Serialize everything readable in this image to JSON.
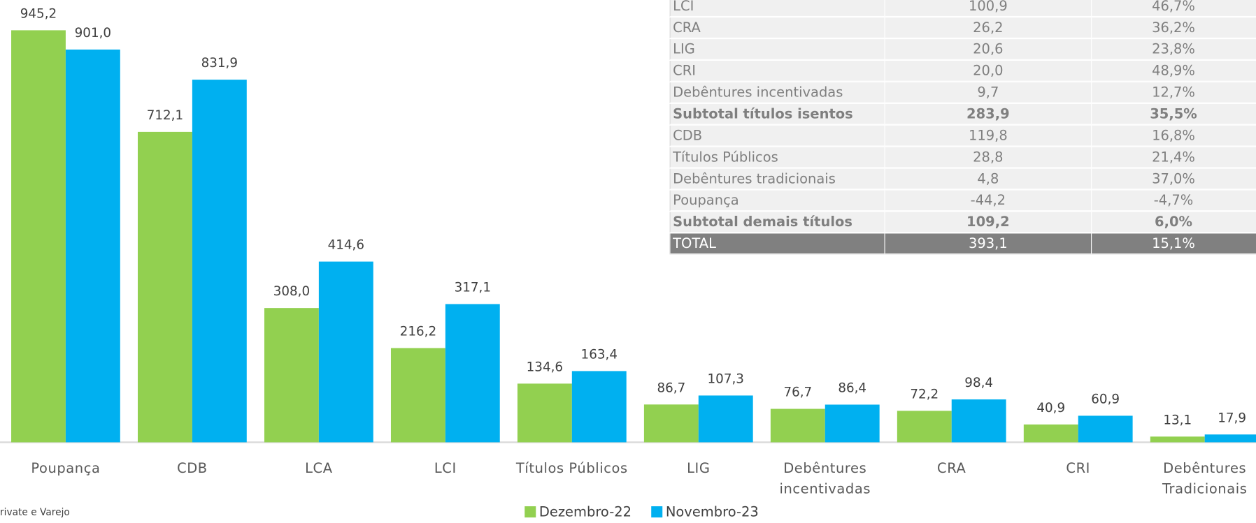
{
  "chart_data": {
    "type": "bar",
    "categories": [
      "Poupança",
      "CDB",
      "LCA",
      "LCI",
      "Títulos Públicos",
      "LIG",
      "Debêntures incentivadas",
      "CRA",
      "CRI",
      "Debêntures Tradicionais"
    ],
    "series": [
      {
        "name": "Dezembro-22",
        "color": "#92d050",
        "values": [
          945.2,
          712.1,
          308.0,
          216.2,
          134.6,
          86.7,
          76.7,
          72.2,
          40.9,
          13.1
        ],
        "value_labels": [
          "945,2",
          "712,1",
          "308,0",
          "216,2",
          "134,6",
          "86,7",
          "76,7",
          "72,2",
          "40,9",
          "13,1"
        ]
      },
      {
        "name": "Novembro-23",
        "color": "#00b0f0",
        "values": [
          901.0,
          831.9,
          414.6,
          317.1,
          163.4,
          107.3,
          86.4,
          98.4,
          60.9,
          17.9
        ],
        "value_labels": [
          "901,0",
          "831,9",
          "414,6",
          "317,1",
          "163,4",
          "107,3",
          "86,4",
          "98,4",
          "60,9",
          "17,9"
        ]
      }
    ],
    "ylim": [
      0,
      1000
    ],
    "legend": "bottom",
    "source": "rivate e Varejo"
  },
  "table": {
    "rows": [
      [
        "LCI",
        "100,9",
        "46,7%"
      ],
      [
        "CRA",
        "26,2",
        "36,2%"
      ],
      [
        "LIG",
        "20,6",
        "23,8%"
      ],
      [
        "CRI",
        "20,0",
        "48,9%"
      ],
      [
        "Debêntures incentivadas",
        "9,7",
        "12,7%"
      ],
      [
        "Subtotal títulos isentos",
        "283,9",
        "35,5%"
      ],
      [
        "CDB",
        "119,8",
        "16,8%"
      ],
      [
        "Títulos Públicos",
        "28,8",
        "21,4%"
      ],
      [
        "Debêntures tradicionais",
        "4,8",
        "37,0%"
      ],
      [
        "Poupança",
        "-44,2",
        "-4,7%"
      ],
      [
        "Subtotal demais títulos",
        "109,2",
        "6,0%"
      ],
      [
        "TOTAL",
        "393,1",
        "15,1%"
      ]
    ]
  }
}
